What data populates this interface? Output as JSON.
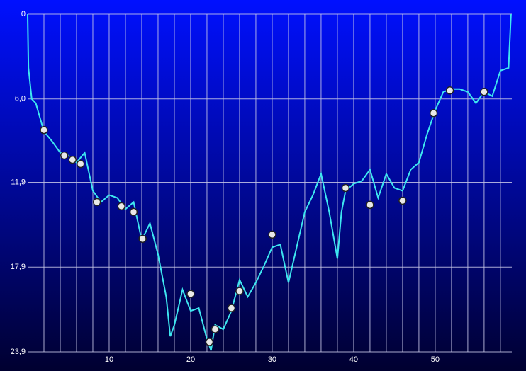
{
  "chart_data": {
    "type": "line",
    "x": [
      0,
      0.1,
      0.5,
      1,
      2,
      3,
      4,
      5,
      6,
      7,
      8,
      9,
      10,
      11,
      12,
      13,
      14,
      15,
      16,
      17,
      17.5,
      18,
      19,
      20,
      21,
      22,
      22.5,
      23,
      24,
      25,
      26,
      27,
      28,
      29,
      30,
      31,
      32,
      33,
      34,
      35,
      36,
      37,
      38,
      38.5,
      39,
      40,
      41,
      42,
      43,
      44,
      45,
      46,
      47,
      48,
      49,
      50,
      51,
      52,
      53,
      54,
      55,
      56,
      57,
      58,
      59,
      59.3
    ],
    "series": [
      {
        "color": "#3ee6f0",
        "values": [
          0,
          3.8,
          6.0,
          6.3,
          8.3,
          9.0,
          9.8,
          10.0,
          10.5,
          9.8,
          12.5,
          13.3,
          12.8,
          13.0,
          13.8,
          13.3,
          16.0,
          14.8,
          17.0,
          20.0,
          22.8,
          22.0,
          19.5,
          21.0,
          20.8,
          23.0,
          23.8,
          22.0,
          22.3,
          21.0,
          18.8,
          20.0,
          19.0,
          17.8,
          16.5,
          16.3,
          19.0,
          16.5,
          14.0,
          12.8,
          11.3,
          14.0,
          17.3,
          14.0,
          12.5,
          12.0,
          11.8,
          11.0,
          13.0,
          11.3,
          12.3,
          12.5,
          11.0,
          10.5,
          8.5,
          6.8,
          5.5,
          5.3,
          5.3,
          5.5,
          6.3,
          5.5,
          5.8,
          4.0,
          3.8,
          0
        ]
      }
    ],
    "events": {
      "x": [
        2,
        4.5,
        5.5,
        6.5,
        8.5,
        11.5,
        13,
        14.1,
        20,
        22.3,
        23,
        25,
        26,
        30,
        39,
        42,
        46,
        49.8,
        51.8,
        56
      ],
      "values": [
        8.2,
        10.0,
        10.3,
        10.6,
        13.3,
        13.6,
        14.0,
        15.9,
        19.8,
        23.2,
        22.3,
        20.8,
        19.6,
        15.6,
        12.3,
        13.5,
        13.2,
        7.0,
        5.4,
        5.5
      ]
    },
    "xlim": [
      0,
      59.4
    ],
    "xticks": [
      10,
      20,
      30,
      40,
      50
    ],
    "xgrid": [
      2,
      4,
      6,
      8,
      10,
      12,
      14,
      16,
      18,
      20,
      22,
      24,
      26,
      28,
      30,
      32,
      34,
      36,
      38,
      40,
      42,
      44,
      46,
      48,
      50,
      52,
      54,
      56,
      58
    ],
    "ylim": [
      0,
      23.9
    ],
    "y_inverted": true,
    "yticks": [
      0,
      {
        "value": 6.0,
        "label": "6,0"
      },
      {
        "value": 11.9,
        "label": "11,9"
      },
      {
        "value": 17.9,
        "label": "17,9"
      },
      {
        "value": 23.9,
        "label": "23,9"
      }
    ],
    "grid": true
  }
}
